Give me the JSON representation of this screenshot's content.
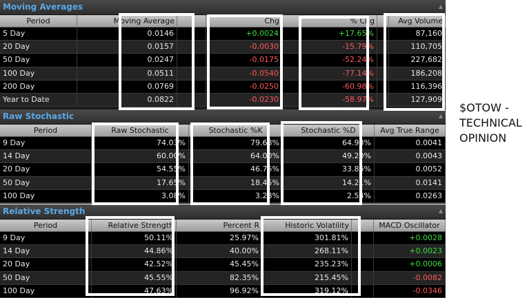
{
  "moving_averages": {
    "title": "Moving Averages",
    "columns": [
      "Period",
      "Moving Average",
      "Chg",
      "% Chg",
      "Avg Volume"
    ],
    "rows": [
      [
        "5 Day",
        "0.0146",
        "+0.0024",
        "+17.65%",
        "87,160"
      ],
      [
        "20 Day",
        "0.0157",
        "-0.0030",
        "-15.79%",
        "110,705"
      ],
      [
        "50 Day",
        "0.0247",
        "-0.0175",
        "-52.24%",
        "227,682"
      ],
      [
        "100 Day",
        "0.0511",
        "-0.0540",
        "-77.14%",
        "186,208"
      ],
      [
        "200 Day",
        "0.0769",
        "-0.0250",
        "-60.98%",
        "116,396"
      ],
      [
        "Year to Date",
        "0.0822",
        "-0.0230",
        "-58.97%",
        "127,909"
      ]
    ]
  },
  "raw_stochastic": {
    "title": "Raw Stochastic",
    "columns": [
      "Period",
      "Raw Stochastic",
      "Stochastic %K",
      "Stochastic %D",
      "Avg True Range"
    ],
    "rows": [
      [
        "9 Day",
        "74.03%",
        "79.68%",
        "64.98%",
        "0.0041"
      ],
      [
        "14 Day",
        "60.00%",
        "64.00%",
        "49.20%",
        "0.0043"
      ],
      [
        "20 Day",
        "54.55%",
        "46.75%",
        "33.86%",
        "0.0052"
      ],
      [
        "50 Day",
        "17.65%",
        "18.45%",
        "14.21%",
        "0.0141"
      ],
      [
        "100 Day",
        "3.08%",
        "3.28%",
        "2.54%",
        "0.0263"
      ]
    ]
  },
  "relative_strength": {
    "title": "Relative Strength",
    "columns": [
      "Period",
      "Relative Strength",
      "Percent R",
      "Historic Volatility",
      "MACD Oscillator"
    ],
    "rows": [
      [
        "9 Day",
        "50.11%",
        "25.97%",
        "301.81%",
        "+0.0028"
      ],
      [
        "14 Day",
        "44.86%",
        "40.00%",
        "268.11%",
        "+0.0023"
      ],
      [
        "20 Day",
        "42.52%",
        "45.45%",
        "235.23%",
        "+0.0006"
      ],
      [
        "50 Day",
        "45.55%",
        "82.35%",
        "215.45%",
        "-0.0082"
      ],
      [
        "100 Day",
        "47.63%",
        "96.92%",
        "319.12%",
        "-0.0346"
      ]
    ]
  },
  "side_caption": {
    "line1": "$OTOW -",
    "line2": "TECHNICAL",
    "line3": "OPINION"
  },
  "toggle_icon": "collapse-triangle-icon",
  "colors": {
    "positive": "#3ddc3d",
    "negative": "#ff5a5a",
    "title": "#5aa8e6"
  }
}
